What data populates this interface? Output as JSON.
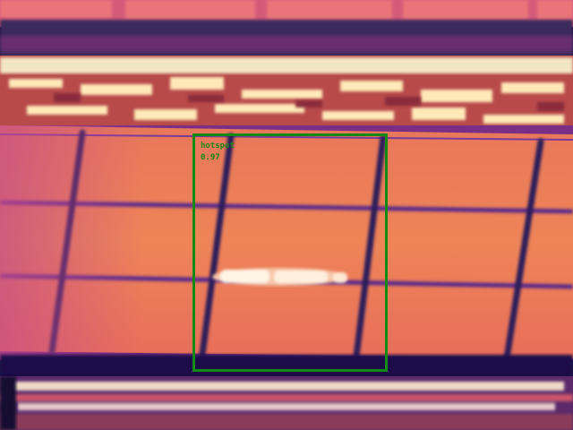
{
  "detection": {
    "label": "hotspot",
    "score": "0.97"
  },
  "colors": {
    "box": "#138a13",
    "label": "#148a14"
  }
}
